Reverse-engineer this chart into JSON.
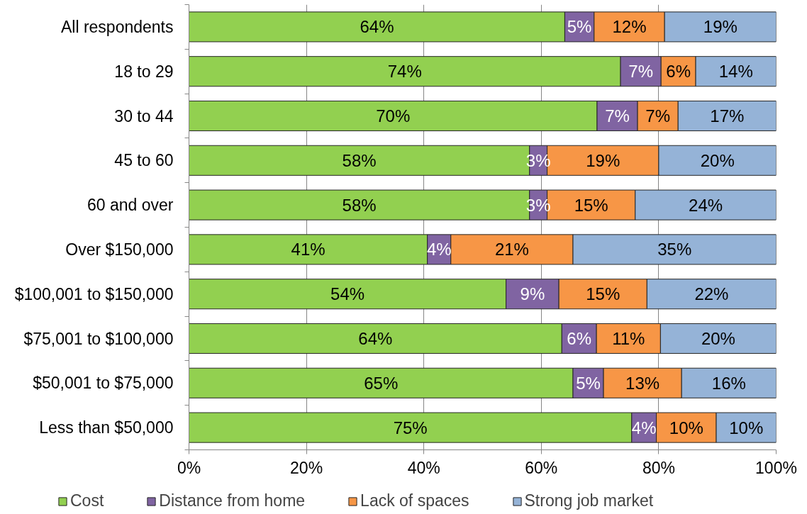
{
  "chart_data": {
    "type": "bar",
    "orientation": "horizontal",
    "stacked": true,
    "categories": [
      "All respondents",
      "18 to 29",
      "30 to 44",
      "45 to 60",
      "60 and over",
      "Over $150,000",
      "$100,001 to $150,000",
      "$75,001 to $100,000",
      "$50,001 to $75,000",
      "Less than $50,000"
    ],
    "xlim": [
      0,
      100
    ],
    "xticks": [
      {
        "value": 0,
        "label": "0%"
      },
      {
        "value": 20,
        "label": "20%"
      },
      {
        "value": 40,
        "label": "40%"
      },
      {
        "value": 60,
        "label": "60%"
      },
      {
        "value": 80,
        "label": "80%"
      },
      {
        "value": 100,
        "label": "100%"
      }
    ],
    "grid": "x",
    "legend": "bottom",
    "series": [
      {
        "name": "Cost",
        "color": "#92d050",
        "values": [
          64,
          73.5,
          69.5,
          58,
          58,
          40.6,
          54,
          63.5,
          65.4,
          75.4
        ],
        "value_labels": [
          "64%",
          "74%",
          "70%",
          "58%",
          "58%",
          "41%",
          "54%",
          "64%",
          "65%",
          "75%"
        ]
      },
      {
        "name": "Distance from home",
        "color": "#8064a2",
        "values": [
          5,
          6.9,
          6.9,
          3,
          3,
          4.0,
          9,
          5.9,
          5.2,
          4.2
        ],
        "value_labels": [
          "5%",
          "7%",
          "7%",
          "3%",
          "3%",
          "4%",
          "9%",
          "6%",
          "5%",
          "4%"
        ]
      },
      {
        "name": "Lack of spaces",
        "color": "#f79646",
        "values": [
          12,
          5.9,
          6.9,
          19,
          15,
          20.8,
          15,
          10.9,
          13.3,
          10.2
        ],
        "value_labels": [
          "12%",
          "6%",
          "7%",
          "19%",
          "15%",
          "21%",
          "15%",
          "11%",
          "13%",
          "10%"
        ]
      },
      {
        "name": "Strong job market",
        "color": "#95b3d7",
        "values": [
          19,
          13.7,
          16.7,
          20,
          24,
          34.6,
          22,
          19.7,
          16.1,
          10.2
        ],
        "value_labels": [
          "19%",
          "14%",
          "17%",
          "20%",
          "24%",
          "35%",
          "22%",
          "20%",
          "16%",
          "10%"
        ]
      }
    ]
  }
}
